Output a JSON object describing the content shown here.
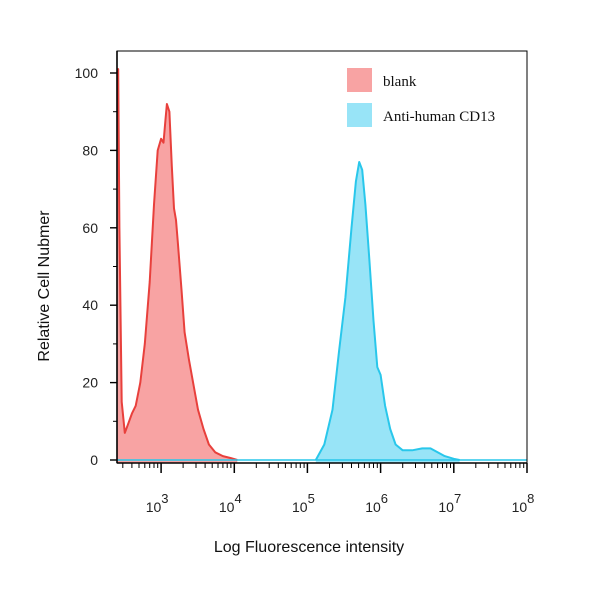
{
  "chart_data": {
    "type": "area",
    "title": "",
    "xlabel": "Log Fluorescence intensity",
    "ylabel": "Relative Cell Nubmer",
    "x_scale": "log",
    "xlim": [
      250,
      100000000
    ],
    "ylim": [
      0,
      100
    ],
    "x_ticks": [
      {
        "value": 1000,
        "base": "10",
        "exp": "3"
      },
      {
        "value": 10000,
        "base": "10",
        "exp": "4"
      },
      {
        "value": 100000,
        "base": "10",
        "exp": "5"
      },
      {
        "value": 1000000,
        "base": "10",
        "exp": "6"
      },
      {
        "value": 10000000,
        "base": "10",
        "exp": "7"
      },
      {
        "value": 100000000,
        "base": "10",
        "exp": "8"
      }
    ],
    "y_ticks": [
      "0",
      "20",
      "40",
      "60",
      "80",
      "100"
    ],
    "grid": false,
    "legend_position": "top-right",
    "series": [
      {
        "name": "blank",
        "fill": "#f8a3a3",
        "stroke": "#e8403c",
        "points": [
          [
            250,
            100
          ],
          [
            260,
            101
          ],
          [
            270,
            60
          ],
          [
            290,
            15
          ],
          [
            320,
            7
          ],
          [
            350,
            9
          ],
          [
            400,
            12
          ],
          [
            450,
            14
          ],
          [
            520,
            20
          ],
          [
            600,
            30
          ],
          [
            700,
            46
          ],
          [
            800,
            66
          ],
          [
            900,
            80
          ],
          [
            1000,
            83
          ],
          [
            1080,
            82
          ],
          [
            1150,
            88
          ],
          [
            1200,
            92
          ],
          [
            1300,
            90
          ],
          [
            1400,
            76
          ],
          [
            1500,
            65
          ],
          [
            1600,
            62
          ],
          [
            1700,
            56
          ],
          [
            1900,
            44
          ],
          [
            2100,
            33
          ],
          [
            2400,
            26
          ],
          [
            2800,
            19
          ],
          [
            3200,
            13
          ],
          [
            3800,
            8
          ],
          [
            4500,
            4
          ],
          [
            5500,
            2
          ],
          [
            7000,
            1
          ],
          [
            9000,
            0.5
          ],
          [
            11000,
            0
          ]
        ]
      },
      {
        "name": "Anti-human CD13",
        "fill": "#98e4f7",
        "stroke": "#29c7eb",
        "points": [
          [
            130000,
            0
          ],
          [
            170000,
            4
          ],
          [
            220000,
            13
          ],
          [
            270000,
            28
          ],
          [
            330000,
            42
          ],
          [
            400000,
            60
          ],
          [
            460000,
            72
          ],
          [
            510000,
            77
          ],
          [
            560000,
            75
          ],
          [
            620000,
            66
          ],
          [
            700000,
            52
          ],
          [
            800000,
            36
          ],
          [
            900000,
            24
          ],
          [
            1000000,
            22
          ],
          [
            1150000,
            14
          ],
          [
            1350000,
            8
          ],
          [
            1600000,
            4
          ],
          [
            2000000,
            2.5
          ],
          [
            2700000,
            2.5
          ],
          [
            3700000,
            3
          ],
          [
            4800000,
            3
          ],
          [
            6000000,
            2
          ],
          [
            7500000,
            1
          ],
          [
            10000000,
            0.3
          ],
          [
            12000000,
            0
          ]
        ]
      }
    ]
  }
}
